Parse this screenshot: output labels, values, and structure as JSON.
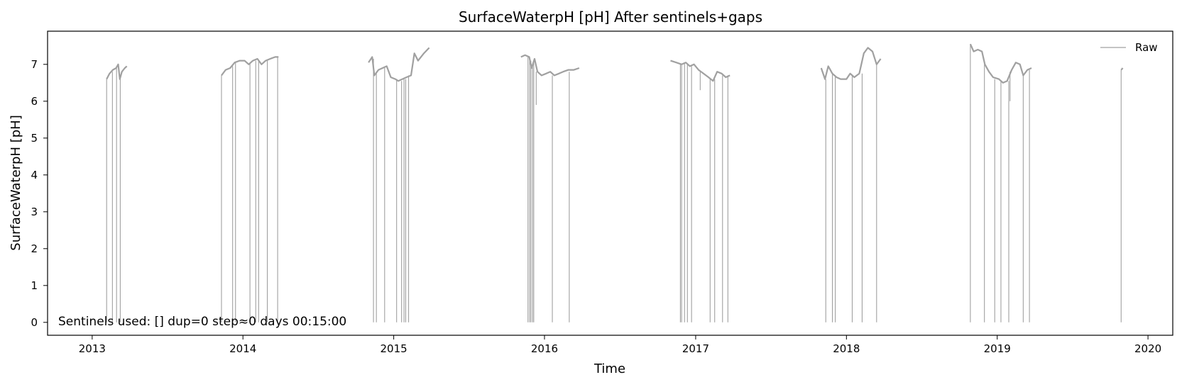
{
  "chart_data": {
    "type": "line",
    "title": "SurfaceWaterpH [pH] After sentinels+gaps",
    "xlabel": "Time",
    "ylabel": "SurfaceWaterpH [pH]",
    "xlim": [
      "2012-09-15",
      "2020-03-01"
    ],
    "ylim": [
      -0.35,
      7.9
    ],
    "x_ticks": [
      "2013-01-01",
      "2014-01-01",
      "2015-01-01",
      "2016-01-01",
      "2017-01-01",
      "2018-01-01",
      "2019-01-01",
      "2020-01-01"
    ],
    "x_tick_labels": [
      "2013",
      "2014",
      "2015",
      "2016",
      "2017",
      "2018",
      "2019",
      "2020"
    ],
    "y_ticks": [
      0,
      1,
      2,
      3,
      4,
      5,
      6,
      7
    ],
    "y_tick_labels": [
      "0",
      "1",
      "2",
      "3",
      "4",
      "5",
      "6",
      "7"
    ],
    "grid": false,
    "legend": {
      "position": "top-right",
      "entries": [
        "Raw"
      ]
    },
    "annotation": "Sentinels used: []  dup=0  step≈0 days 00:15:00",
    "series": [
      {
        "name": "Raw",
        "color": "#a0a0a0",
        "segments": [
          [
            [
              "2013-02-05",
              6.6
            ],
            [
              "2013-02-12",
              6.75
            ],
            [
              "2013-02-20",
              6.85
            ],
            [
              "2013-02-28",
              6.9
            ],
            [
              "2013-03-05",
              7.0
            ],
            [
              "2013-03-09",
              6.6
            ],
            [
              "2013-03-14",
              6.8
            ],
            [
              "2013-03-21",
              6.9
            ],
            [
              "2013-03-26",
              6.95
            ]
          ],
          [
            [
              "2013-11-10",
              6.7
            ],
            [
              "2013-11-20",
              6.85
            ],
            [
              "2013-12-01",
              6.9
            ],
            [
              "2013-12-12",
              7.05
            ],
            [
              "2013-12-24",
              7.1
            ],
            [
              "2014-01-05",
              7.1
            ],
            [
              "2014-01-15",
              7.0
            ],
            [
              "2014-01-25",
              7.1
            ],
            [
              "2014-02-05",
              7.15
            ],
            [
              "2014-02-15",
              7.0
            ],
            [
              "2014-02-25",
              7.1
            ],
            [
              "2014-03-08",
              7.15
            ],
            [
              "2014-03-20",
              7.2
            ],
            [
              "2014-03-28",
              7.2
            ]
          ],
          [
            [
              "2014-11-01",
              7.05
            ],
            [
              "2014-11-10",
              7.2
            ],
            [
              "2014-11-15",
              6.7
            ],
            [
              "2014-11-25",
              6.85
            ],
            [
              "2014-12-05",
              6.9
            ],
            [
              "2014-12-15",
              6.95
            ],
            [
              "2014-12-25",
              6.65
            ],
            [
              "2015-01-05",
              6.6
            ],
            [
              "2015-01-12",
              6.55
            ],
            [
              "2015-01-22",
              6.6
            ],
            [
              "2015-02-01",
              6.65
            ],
            [
              "2015-02-12",
              6.7
            ],
            [
              "2015-02-20",
              7.3
            ],
            [
              "2015-03-01",
              7.1
            ],
            [
              "2015-03-15",
              7.3
            ],
            [
              "2015-03-28",
              7.45
            ]
          ],
          [
            [
              "2015-11-05",
              7.2
            ],
            [
              "2015-11-15",
              7.25
            ],
            [
              "2015-11-25",
              7.2
            ],
            [
              "2015-12-01",
              6.9
            ],
            [
              "2015-12-08",
              7.15
            ],
            [
              "2015-12-15",
              6.8
            ],
            [
              "2015-12-25",
              6.7
            ],
            [
              "2016-01-05",
              6.75
            ],
            [
              "2016-01-15",
              6.8
            ],
            [
              "2016-01-25",
              6.7
            ],
            [
              "2016-02-05",
              6.75
            ],
            [
              "2016-02-15",
              6.8
            ],
            [
              "2016-02-28",
              6.85
            ],
            [
              "2016-03-12",
              6.85
            ],
            [
              "2016-03-25",
              6.9
            ]
          ],
          [
            [
              "2016-11-01",
              7.1
            ],
            [
              "2016-11-15",
              7.05
            ],
            [
              "2016-11-28",
              7.0
            ],
            [
              "2016-12-08",
              7.05
            ],
            [
              "2016-12-18",
              6.95
            ],
            [
              "2016-12-28",
              7.0
            ],
            [
              "2017-01-08",
              6.85
            ],
            [
              "2017-01-20",
              6.75
            ],
            [
              "2017-02-01",
              6.65
            ],
            [
              "2017-02-12",
              6.55
            ],
            [
              "2017-02-22",
              6.8
            ],
            [
              "2017-03-05",
              6.75
            ],
            [
              "2017-03-15",
              6.65
            ],
            [
              "2017-03-25",
              6.7
            ]
          ],
          [
            [
              "2017-11-01",
              6.9
            ],
            [
              "2017-11-10",
              6.6
            ],
            [
              "2017-11-18",
              6.95
            ],
            [
              "2017-11-28",
              6.75
            ],
            [
              "2017-12-08",
              6.65
            ],
            [
              "2017-12-18",
              6.6
            ],
            [
              "2018-01-01",
              6.6
            ],
            [
              "2018-01-10",
              6.75
            ],
            [
              "2018-01-20",
              6.65
            ],
            [
              "2018-02-01",
              6.75
            ],
            [
              "2018-02-12",
              7.3
            ],
            [
              "2018-02-22",
              7.45
            ],
            [
              "2018-03-05",
              7.35
            ],
            [
              "2018-03-15",
              7.0
            ],
            [
              "2018-03-25",
              7.15
            ]
          ],
          [
            [
              "2018-10-28",
              7.55
            ],
            [
              "2018-11-05",
              7.35
            ],
            [
              "2018-11-15",
              7.4
            ],
            [
              "2018-11-25",
              7.35
            ],
            [
              "2018-12-02",
              7.0
            ],
            [
              "2018-12-12",
              6.8
            ],
            [
              "2018-12-22",
              6.65
            ],
            [
              "2019-01-05",
              6.6
            ],
            [
              "2019-01-15",
              6.5
            ],
            [
              "2019-01-25",
              6.55
            ],
            [
              "2019-02-05",
              6.85
            ],
            [
              "2019-02-15",
              7.05
            ],
            [
              "2019-02-25",
              7.0
            ],
            [
              "2019-03-05",
              6.7
            ],
            [
              "2019-03-15",
              6.85
            ],
            [
              "2019-03-25",
              6.9
            ]
          ],
          [
            [
              "2019-10-28",
              6.85
            ],
            [
              "2019-11-01",
              6.9
            ]
          ]
        ],
        "dropouts": [
          [
            "2013-02-05",
            6.6
          ],
          [
            "2013-02-19",
            6.8
          ],
          [
            "2013-03-01",
            6.95
          ],
          [
            "2013-03-10",
            6.6
          ],
          [
            "2013-11-10",
            6.7
          ],
          [
            "2013-12-07",
            6.95
          ],
          [
            "2013-12-14",
            7.05
          ],
          [
            "2014-01-18",
            7.05
          ],
          [
            "2014-02-01",
            7.1
          ],
          [
            "2014-02-08",
            7.1
          ],
          [
            "2014-03-01",
            7.1
          ],
          [
            "2014-03-26",
            7.2
          ],
          [
            "2014-11-13",
            7.15
          ],
          [
            "2014-11-20",
            6.8
          ],
          [
            "2014-12-10",
            6.9
          ],
          [
            "2015-01-08",
            6.6
          ],
          [
            "2015-01-20",
            6.55
          ],
          [
            "2015-01-26",
            6.6
          ],
          [
            "2015-01-30",
            6.6
          ],
          [
            "2015-02-06",
            6.7
          ],
          [
            "2015-11-22",
            7.2
          ],
          [
            "2015-11-26",
            7.2
          ],
          [
            "2015-11-29",
            7.1
          ],
          [
            "2015-12-03",
            6.95
          ],
          [
            "2015-12-06",
            7.1
          ],
          [
            "2016-01-20",
            6.7
          ],
          [
            "2016-03-01",
            6.8
          ],
          [
            "2016-11-25",
            7.0
          ],
          [
            "2016-11-28",
            7.0
          ],
          [
            "2016-12-05",
            7.05
          ],
          [
            "2016-12-12",
            7.0
          ],
          [
            "2016-12-22",
            6.95
          ],
          [
            "2017-02-05",
            6.6
          ],
          [
            "2017-02-16",
            6.6
          ],
          [
            "2017-03-07",
            6.7
          ],
          [
            "2017-03-20",
            6.7
          ],
          [
            "2017-11-12",
            6.6
          ],
          [
            "2017-11-28",
            6.75
          ],
          [
            "2017-12-05",
            6.65
          ],
          [
            "2018-01-15",
            6.7
          ],
          [
            "2018-02-08",
            6.75
          ],
          [
            "2018-03-15",
            7.0
          ],
          [
            "2018-10-28",
            7.55
          ],
          [
            "2018-12-01",
            7.0
          ],
          [
            "2018-12-26",
            6.6
          ],
          [
            "2019-01-10",
            6.55
          ],
          [
            "2019-01-29",
            6.55
          ],
          [
            "2019-03-05",
            6.7
          ],
          [
            "2019-03-20",
            6.85
          ],
          [
            "2019-10-28",
            6.85
          ]
        ],
        "spikes": [
          [
            "2015-12-12",
            5.9
          ],
          [
            "2017-01-12",
            6.3
          ],
          [
            "2019-02-01",
            6.0
          ]
        ]
      }
    ]
  }
}
